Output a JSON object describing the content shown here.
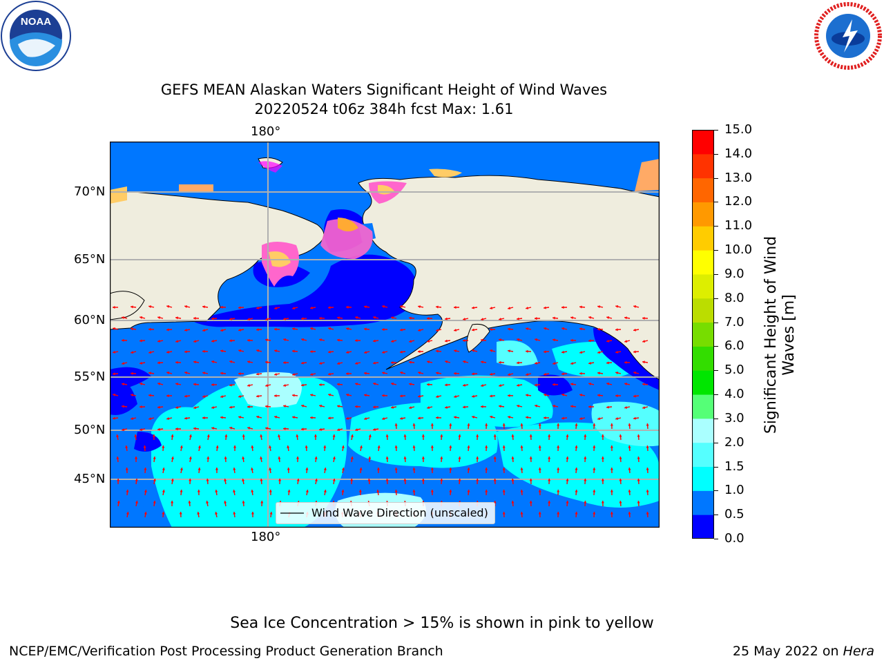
{
  "logos": {
    "noaa": {
      "text": "NOAA",
      "ring_text": "NATIONAL OCEANIC AND ATMOSPHERIC ADMINISTRATION · U.S. DEPARTMENT OF COMMERCE"
    },
    "nws": {
      "ring_text": "NATIONAL WEATHER SERVICE"
    }
  },
  "header": {
    "title_line1": "GEFS MEAN Alaskan Waters Significant Height of Wind Waves",
    "title_line2": "20220524 t06z 384h fcst   Max: 1.61"
  },
  "map": {
    "lon_label_top": "180°",
    "lon_label_bottom": "180°",
    "lat_labels": [
      "70°N",
      "65°N",
      "60°N",
      "55°N",
      "50°N",
      "45°N"
    ],
    "legend_label": "Wind Wave Direction (unscaled)",
    "colors": {
      "land": "#efedde",
      "grid": "#b0b0b0",
      "arrow": "#ff0000",
      "sea_ice": [
        "#ff00ff",
        "#ff66cc",
        "#ffcc66",
        "#ffaa33"
      ]
    }
  },
  "colorbar": {
    "label": "Significant Height of Wind Waves [m]",
    "label_line1": "Significant Height of Wind",
    "label_line2": "Waves [m]",
    "ticks": [
      "0.0",
      "0.5",
      "1.0",
      "1.5",
      "2.0",
      "3.0",
      "4.0",
      "5.0",
      "6.0",
      "7.0",
      "8.0",
      "9.0",
      "10.0",
      "11.0",
      "12.0",
      "13.0",
      "14.0",
      "15.0"
    ],
    "colors": [
      "#0000ff",
      "#0077ff",
      "#00ffff",
      "#55ffff",
      "#aaffff",
      "#55ff77",
      "#00e600",
      "#33dd00",
      "#77dd00",
      "#bbdd00",
      "#ddee00",
      "#ffff00",
      "#ffcc00",
      "#ff9900",
      "#ff6600",
      "#ff3300",
      "#ff0000"
    ]
  },
  "chart_data": {
    "type": "heatmap",
    "title": "GEFS MEAN Alaskan Waters Significant Height of Wind Waves",
    "subtitle": "20220524 t06z 384h fcst   Max: 1.61",
    "variable": "Significant Height of Wind Waves [m]",
    "max_value": 1.61,
    "color_levels": [
      0.0,
      0.5,
      1.0,
      1.5,
      2.0,
      3.0,
      4.0,
      5.0,
      6.0,
      7.0,
      8.0,
      9.0,
      10.0,
      11.0,
      12.0,
      13.0,
      14.0,
      15.0
    ],
    "lat_ticks": [
      "70°N",
      "65°N",
      "60°N",
      "55°N",
      "50°N",
      "45°N"
    ],
    "lon_ticks": [
      "180°"
    ],
    "grid": true,
    "legend_placement": "bottom-center"
  },
  "notes": {
    "sea_ice": "Sea Ice Concentration > 15% is shown in pink to yellow"
  },
  "footer": {
    "left": "NCEP/EMC/Verification Post Processing Product Generation Branch",
    "right_date": "25 May 2022 on",
    "right_host": "Hera"
  }
}
